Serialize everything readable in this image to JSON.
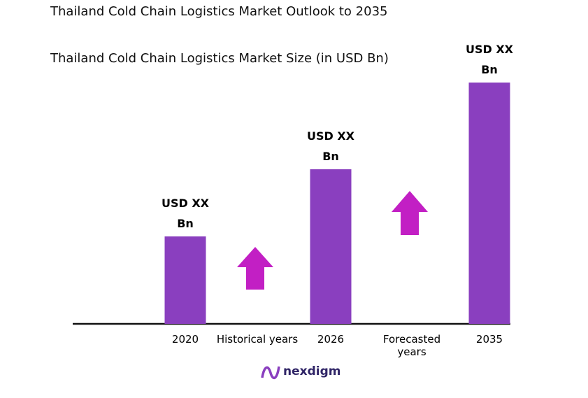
{
  "chart_data": {
    "type": "bar",
    "title": "Thailand Cold Chain Logistics Market Outlook to 2035",
    "subtitle": "Thailand Cold Chain Logistics Market Size (in USD Bn)",
    "categories": [
      "2020",
      "2026",
      "2035"
    ],
    "values": [
      125,
      221,
      345
    ],
    "value_labels": [
      "USD XX Bn",
      "USD XX Bn",
      "USD XX Bn"
    ],
    "annotations": [
      "Historical years",
      "Forecasted years"
    ],
    "color": "#8a3fbf",
    "logo": "nexdigm"
  }
}
